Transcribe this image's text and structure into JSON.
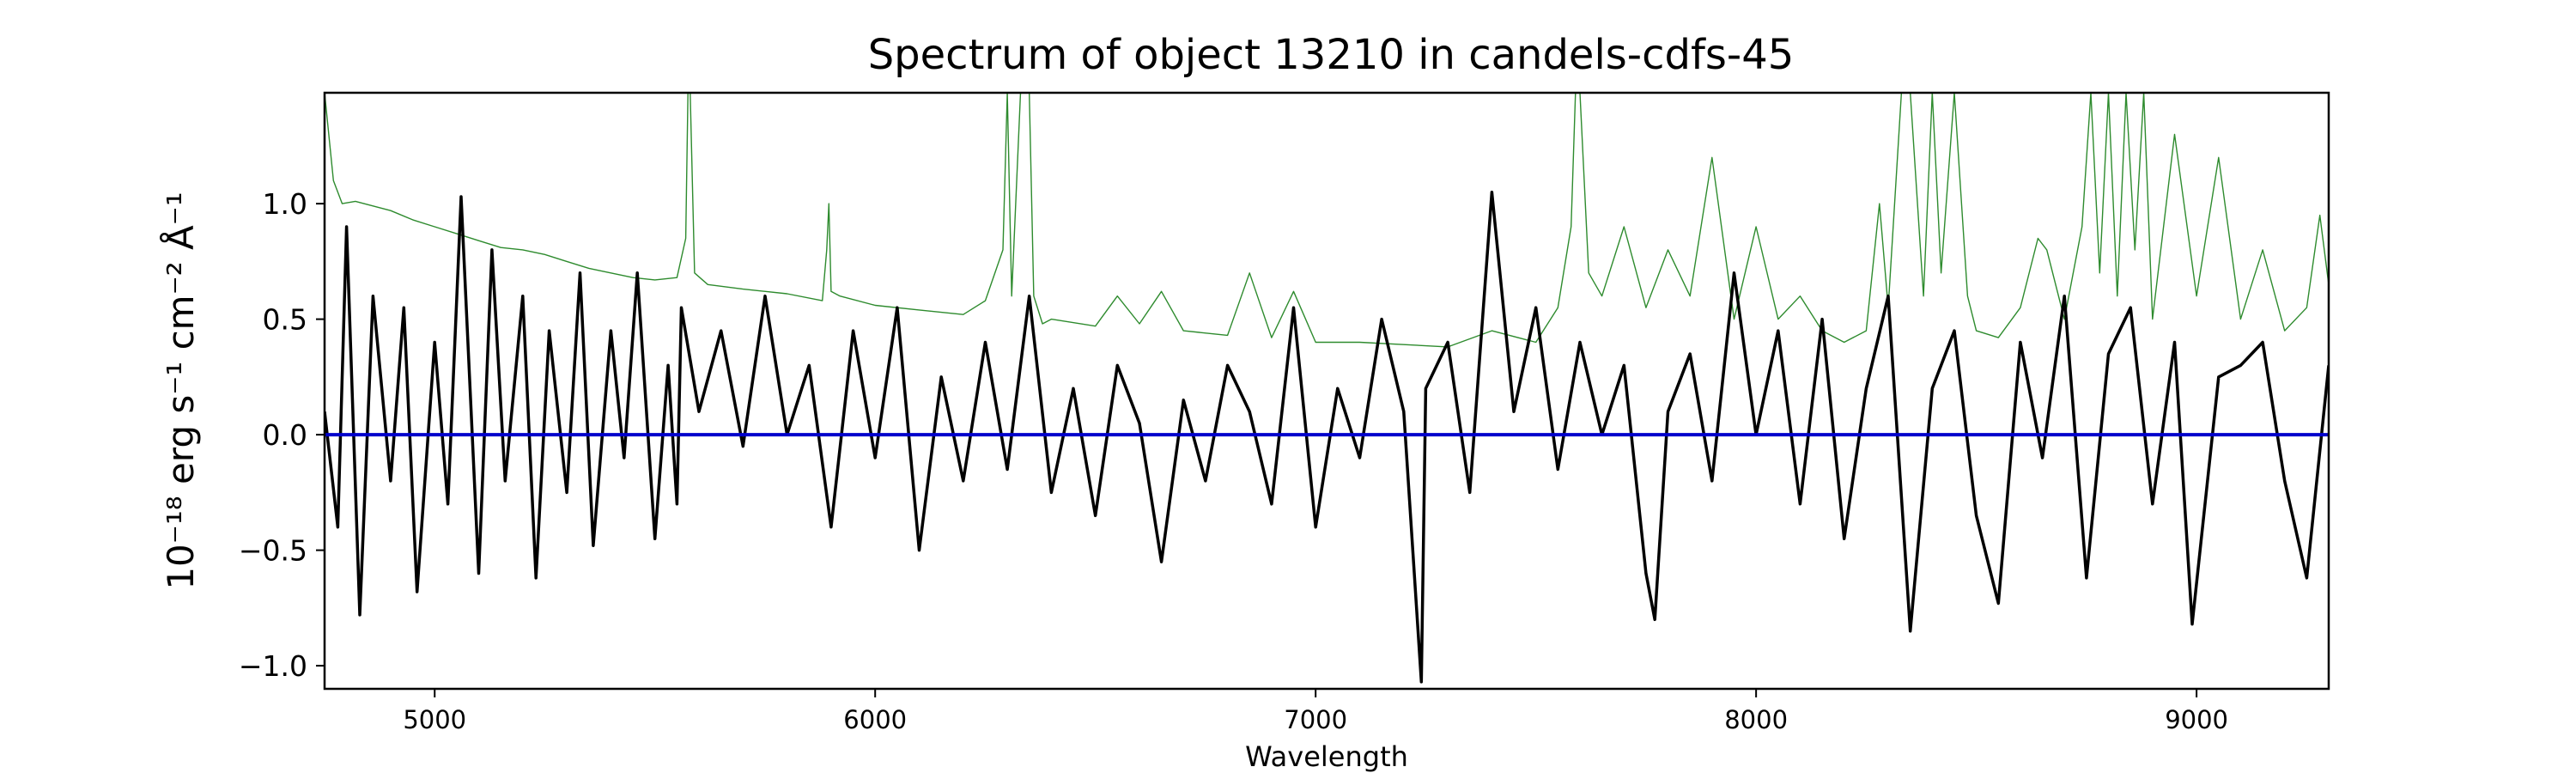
{
  "chart_data": {
    "type": "line",
    "title": "Spectrum of object 13210 in candels-cdfs-45",
    "xlabel": "Wavelength",
    "ylabel": "10⁻¹⁸ erg s⁻¹ cm⁻² Å⁻¹",
    "xlim": [
      4750,
      9300
    ],
    "ylim": [
      -1.1,
      1.48
    ],
    "x_ticks": [
      5000,
      6000,
      7000,
      8000,
      9000
    ],
    "y_ticks": [
      -1.0,
      -0.5,
      0.0,
      0.5,
      1.0
    ],
    "y_tick_labels": [
      "−1.0",
      "−0.5",
      "0.0",
      "0.5",
      "1.0"
    ],
    "grid": false,
    "series": [
      {
        "role": "flux",
        "color": "#000000",
        "x": [
          4750,
          4780,
          4800,
          4830,
          4860,
          4900,
          4930,
          4960,
          5000,
          5030,
          5060,
          5100,
          5130,
          5160,
          5200,
          5230,
          5260,
          5300,
          5330,
          5360,
          5400,
          5430,
          5460,
          5500,
          5530,
          5550,
          5560,
          5600,
          5650,
          5700,
          5750,
          5800,
          5850,
          5900,
          5950,
          6000,
          6050,
          6100,
          6150,
          6200,
          6250,
          6300,
          6350,
          6400,
          6450,
          6500,
          6550,
          6600,
          6650,
          6700,
          6750,
          6800,
          6850,
          6900,
          6950,
          7000,
          7050,
          7100,
          7150,
          7200,
          7240,
          7250,
          7300,
          7350,
          7400,
          7450,
          7500,
          7550,
          7600,
          7650,
          7700,
          7750,
          7770,
          7800,
          7850,
          7900,
          7950,
          8000,
          8050,
          8100,
          8150,
          8200,
          8250,
          8300,
          8350,
          8400,
          8450,
          8500,
          8550,
          8600,
          8650,
          8700,
          8750,
          8800,
          8850,
          8900,
          8950,
          8990,
          9050,
          9100,
          9150,
          9200,
          9250,
          9300
        ],
        "y": [
          0.1,
          -0.4,
          0.9,
          -0.78,
          0.6,
          -0.2,
          0.55,
          -0.68,
          0.4,
          -0.3,
          1.03,
          -0.6,
          0.8,
          -0.2,
          0.6,
          -0.62,
          0.45,
          -0.25,
          0.7,
          -0.48,
          0.45,
          -0.1,
          0.7,
          -0.45,
          0.3,
          -0.3,
          0.55,
          0.1,
          0.45,
          -0.05,
          0.6,
          0.0,
          0.3,
          -0.4,
          0.45,
          -0.1,
          0.55,
          -0.5,
          0.25,
          -0.2,
          0.4,
          -0.15,
          0.6,
          -0.25,
          0.2,
          -0.35,
          0.3,
          0.05,
          -0.55,
          0.15,
          -0.2,
          0.3,
          0.1,
          -0.3,
          0.55,
          -0.4,
          0.2,
          -0.1,
          0.5,
          0.1,
          -1.07,
          0.2,
          0.4,
          -0.25,
          1.05,
          0.1,
          0.55,
          -0.15,
          0.4,
          0.0,
          0.3,
          -0.6,
          -0.8,
          0.1,
          0.35,
          -0.2,
          0.7,
          0.0,
          0.45,
          -0.3,
          0.5,
          -0.45,
          0.2,
          0.6,
          -0.85,
          0.2,
          0.45,
          -0.35,
          -0.73,
          0.4,
          -0.1,
          0.6,
          -0.62,
          0.35,
          0.55,
          -0.3,
          0.4,
          -0.82,
          0.25,
          0.3,
          0.4,
          -0.2,
          -0.62,
          0.3
        ]
      },
      {
        "role": "uncertainty",
        "color": "#2e8b2e",
        "x": [
          4750,
          4770,
          4790,
          4820,
          4860,
          4900,
          4950,
          5000,
          5050,
          5100,
          5150,
          5200,
          5250,
          5300,
          5350,
          5400,
          5450,
          5500,
          5550,
          5570,
          5575,
          5580,
          5590,
          5620,
          5700,
          5800,
          5880,
          5890,
          5895,
          5900,
          5920,
          6000,
          6100,
          6200,
          6250,
          6290,
          6300,
          6310,
          6330,
          6350,
          6360,
          6380,
          6400,
          6500,
          6550,
          6600,
          6650,
          6700,
          6800,
          6850,
          6900,
          6950,
          7000,
          7100,
          7200,
          7300,
          7400,
          7500,
          7550,
          7580,
          7590,
          7600,
          7620,
          7650,
          7700,
          7750,
          7800,
          7850,
          7900,
          7950,
          8000,
          8050,
          8100,
          8150,
          8200,
          8250,
          8280,
          8300,
          8330,
          8350,
          8380,
          8400,
          8420,
          8450,
          8480,
          8500,
          8550,
          8600,
          8640,
          8660,
          8700,
          8740,
          8760,
          8780,
          8800,
          8820,
          8840,
          8860,
          8880,
          8900,
          8950,
          9000,
          9050,
          9100,
          9150,
          9200,
          9250,
          9280,
          9300
        ],
        "y": [
          1.48,
          1.1,
          1.0,
          1.01,
          0.99,
          0.97,
          0.93,
          0.9,
          0.87,
          0.84,
          0.81,
          0.8,
          0.78,
          0.75,
          0.72,
          0.7,
          0.68,
          0.67,
          0.68,
          0.85,
          1.48,
          1.48,
          0.7,
          0.65,
          0.63,
          0.61,
          0.58,
          0.8,
          1.0,
          0.62,
          0.6,
          0.56,
          0.54,
          0.52,
          0.58,
          0.8,
          1.48,
          0.6,
          1.48,
          1.48,
          0.6,
          0.48,
          0.5,
          0.47,
          0.6,
          0.48,
          0.62,
          0.45,
          0.43,
          0.7,
          0.42,
          0.62,
          0.4,
          0.4,
          0.39,
          0.38,
          0.45,
          0.4,
          0.55,
          0.9,
          1.48,
          1.48,
          0.7,
          0.6,
          0.9,
          0.55,
          0.8,
          0.6,
          1.2,
          0.5,
          0.9,
          0.5,
          0.6,
          0.45,
          0.4,
          0.45,
          1.0,
          0.55,
          1.48,
          1.48,
          0.6,
          1.48,
          0.7,
          1.48,
          0.6,
          0.45,
          0.42,
          0.55,
          0.85,
          0.8,
          0.5,
          0.9,
          1.48,
          0.7,
          1.48,
          0.6,
          1.48,
          0.8,
          1.48,
          0.5,
          1.3,
          0.6,
          1.2,
          0.5,
          0.8,
          0.45,
          0.55,
          0.95,
          0.65
        ]
      },
      {
        "role": "zero-level",
        "color": "#0000cc",
        "x": [
          4750,
          9300
        ],
        "y": [
          0,
          0
        ]
      }
    ]
  }
}
